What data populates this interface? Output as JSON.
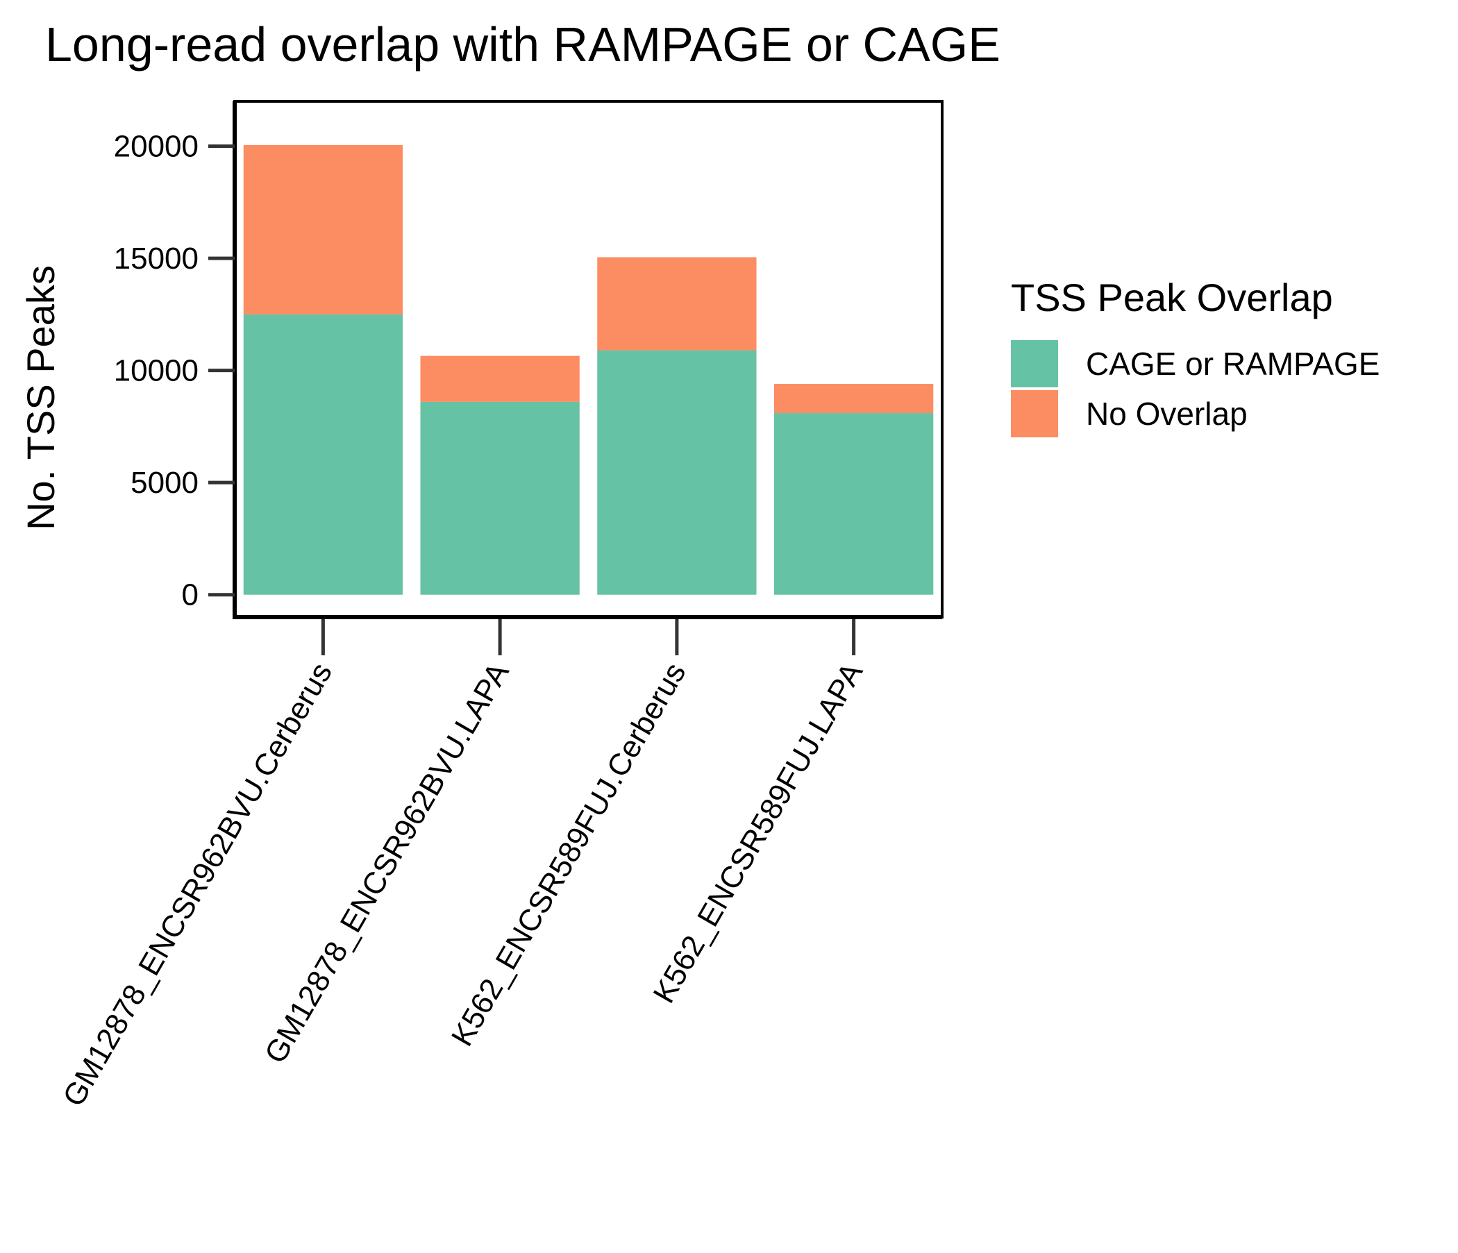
{
  "chart_data": {
    "type": "bar",
    "stacked": true,
    "title": "Long-read overlap with RAMPAGE or CAGE",
    "xlabel": "",
    "ylabel": "No. TSS Peaks",
    "ylim": [
      -1000,
      22000
    ],
    "yticks": [
      0,
      5000,
      10000,
      15000,
      20000
    ],
    "grid": false,
    "legend_position": "right",
    "legend_title": "TSS Peak Overlap",
    "categories": [
      "GM12878_ENCSR962BVU.Cerberus",
      "GM12878_ENCSR962BVU.LAPA",
      "K562_ENCSR589FUJ.Cerberus",
      "K562_ENCSR589FUJ.LAPA"
    ],
    "series": [
      {
        "name": "CAGE or RAMPAGE",
        "color": "#66c2a5",
        "values": [
          12500,
          8600,
          10900,
          8100
        ]
      },
      {
        "name": "No Overlap",
        "color": "#fc8d62",
        "values": [
          7550,
          2050,
          4150,
          1300
        ]
      }
    ]
  }
}
